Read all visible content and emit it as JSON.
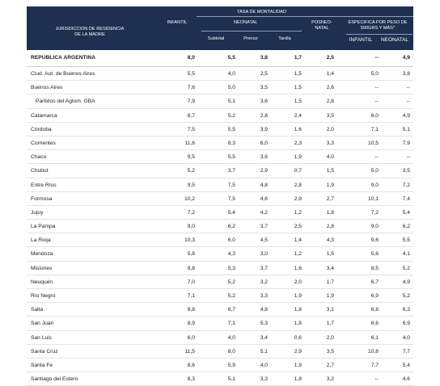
{
  "header": {
    "jurisdiccion": "JURISDICCION DE RESIDENCIA\nDE LA MADRE",
    "tasa": "TASA DE MORTALIDAD",
    "infantil": "INFANTIL",
    "neonatal": "NEONATAL",
    "posneonatal": "POSNEO-\nNATAL",
    "especifica": "ESPECIFICA POR PESO DE\n500GRS Y MÁS*",
    "subtotal": "Subtotal",
    "precoz": "Precoz",
    "tardia": "Tardía",
    "esp_infantil": "INFANTIL",
    "esp_neonatal": "NEONATAL"
  },
  "rows": [
    {
      "name": "REPUBLICA ARGENTINA",
      "v": [
        "8,0",
        "5,5",
        "3,8",
        "1,7",
        "2,5",
        "--",
        "4,9"
      ],
      "bold": true
    },
    {
      "name": "Ciud. Aut. de Buenos Aires",
      "v": [
        "5,5",
        "4,0",
        "2,5",
        "1,5",
        "1,4",
        "5,0",
        "3,8"
      ]
    },
    {
      "name": "Buenos Aires",
      "v": [
        "7,6",
        "5,0",
        "3,5",
        "1,5",
        "2,6",
        "--",
        "--"
      ]
    },
    {
      "name": "Partidos del Aglom. GBA",
      "v": [
        "7,9",
        "5,1",
        "3,6",
        "1,5",
        "2,8",
        "--",
        "--"
      ],
      "indent": true
    },
    {
      "name": "Catamarca",
      "v": [
        "8,7",
        "5,2",
        "2,8",
        "2,4",
        "3,5",
        "8,0",
        "4,9"
      ]
    },
    {
      "name": "Córdoba",
      "v": [
        "7,5",
        "5,5",
        "3,9",
        "1,6",
        "2,0",
        "7,1",
        "5,1"
      ]
    },
    {
      "name": "Corrientes",
      "v": [
        "11,6",
        "8,3",
        "6,0",
        "2,3",
        "3,3",
        "10,5",
        "7,9"
      ]
    },
    {
      "name": "Chaco",
      "v": [
        "9,5",
        "5,5",
        "3,6",
        "1,9",
        "4,0",
        "--",
        "--"
      ]
    },
    {
      "name": "Chubut",
      "v": [
        "5,2",
        "3,7",
        "2,9",
        "0,7",
        "1,5",
        "5,0",
        "3,5"
      ]
    },
    {
      "name": "Entre Ríos",
      "v": [
        "9,5",
        "7,5",
        "4,8",
        "2,8",
        "1,9",
        "9,0",
        "7,2"
      ]
    },
    {
      "name": "Formosa",
      "v": [
        "10,2",
        "7,5",
        "4,6",
        "2,9",
        "2,7",
        "10,1",
        "7,4"
      ]
    },
    {
      "name": "Jujuy",
      "v": [
        "7,2",
        "5,4",
        "4,2",
        "1,2",
        "1,8",
        "7,2",
        "5,4"
      ]
    },
    {
      "name": "La Pampa",
      "v": [
        "9,0",
        "6,2",
        "3,7",
        "2,5",
        "2,8",
        "9,0",
        "6,2"
      ]
    },
    {
      "name": "La Rioja",
      "v": [
        "10,3",
        "6,0",
        "4,5",
        "1,4",
        "4,3",
        "9,6",
        "5,5"
      ]
    },
    {
      "name": "Mendoza",
      "v": [
        "5,8",
        "4,3",
        "3,0",
        "1,2",
        "1,5",
        "5,6",
        "4,1"
      ]
    },
    {
      "name": "Misiones",
      "v": [
        "8,8",
        "5,3",
        "3,7",
        "1,6",
        "3,4",
        "8,5",
        "5,2"
      ]
    },
    {
      "name": "Neuquén",
      "v": [
        "7,0",
        "5,2",
        "3,2",
        "2,0",
        "1,7",
        "6,7",
        "4,9"
      ]
    },
    {
      "name": "Río Negro",
      "v": [
        "7,1",
        "5,2",
        "3,3",
        "1,9",
        "1,9",
        "6,9",
        "5,2"
      ]
    },
    {
      "name": "Salta",
      "v": [
        "9,8",
        "6,7",
        "4,8",
        "1,8",
        "3,1",
        "8,8",
        "6,3"
      ]
    },
    {
      "name": "San Juan",
      "v": [
        "8,9",
        "7,1",
        "5,3",
        "1,8",
        "1,7",
        "8,6",
        "6,9"
      ]
    },
    {
      "name": "San Luis",
      "v": [
        "6,0",
        "4,0",
        "3,4",
        "0,6",
        "2,0",
        "6,1",
        "4,0"
      ]
    },
    {
      "name": "Santa Cruz",
      "v": [
        "11,5",
        "8,0",
        "5,1",
        "2,9",
        "3,5",
        "10,8",
        "7,7"
      ]
    },
    {
      "name": "Santa Fe",
      "v": [
        "8,6",
        "5,9",
        "4,0",
        "1,9",
        "2,7",
        "7,7",
        "5,4"
      ]
    },
    {
      "name": "Santiago del Estero",
      "v": [
        "8,3",
        "5,1",
        "3,3",
        "1,8",
        "3,2",
        "--",
        "4,6"
      ]
    }
  ]
}
